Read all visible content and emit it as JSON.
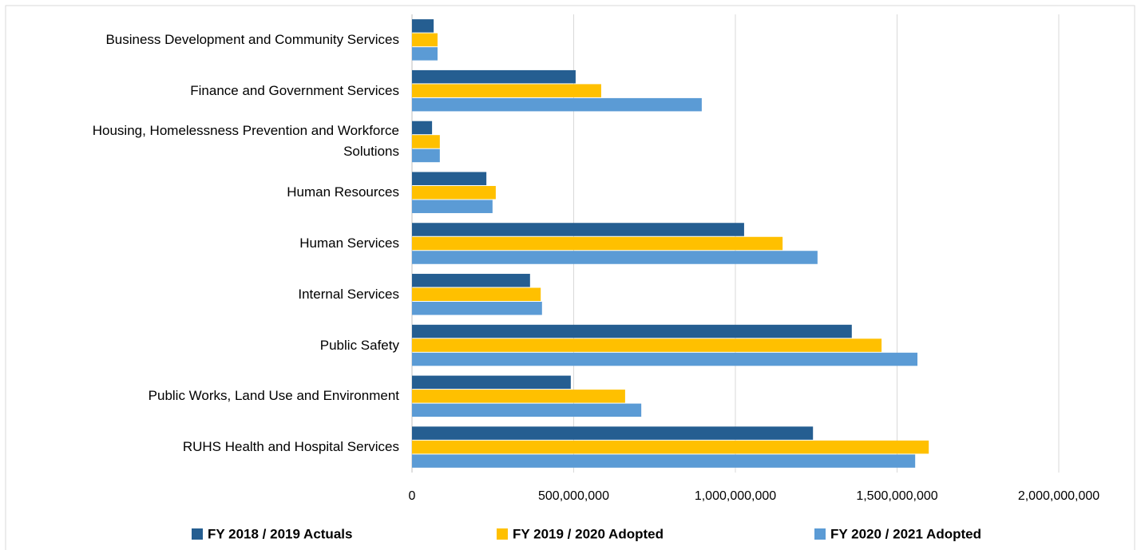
{
  "chart_data": {
    "type": "bar",
    "orientation": "horizontal",
    "categories": [
      "Business Development and Community Services",
      "Finance and Government Services",
      "Housing, Homelessness Prevention and Workforce Solutions",
      "Human Resources",
      "Human Services",
      "Internal Services",
      "Public Safety",
      "Public Works, Land Use and Environment",
      "RUHS Health and Hospital Services"
    ],
    "series": [
      {
        "name": "FY 2018 / 2019 Actuals",
        "color": "#255e91",
        "values": [
          67000000,
          506000000,
          62000000,
          230000000,
          1027000000,
          365000000,
          1360000000,
          491000000,
          1240000000
        ]
      },
      {
        "name": "FY 2019 / 2020 Adopted",
        "color": "#ffc000",
        "values": [
          79000000,
          585000000,
          86000000,
          259000000,
          1146000000,
          398000000,
          1452000000,
          659000000,
          1598000000
        ]
      },
      {
        "name": "FY 2020 / 2021 Adopted",
        "color": "#5b9bd5",
        "values": [
          79000000,
          896000000,
          86000000,
          249000000,
          1254000000,
          402000000,
          1563000000,
          709000000,
          1556000000
        ]
      }
    ],
    "xlim": [
      0,
      2000000000
    ],
    "xticks": [
      0,
      {
        "value": 500000000,
        "label": "500,000,000"
      },
      {
        "value": 1000000000,
        "label": "1,000,000,000"
      },
      {
        "value": 1500000000,
        "label": "1,500,000,000"
      },
      {
        "value": 2000000000,
        "label": "2,000,000,000"
      }
    ],
    "grid": true,
    "legend": "bottom"
  }
}
